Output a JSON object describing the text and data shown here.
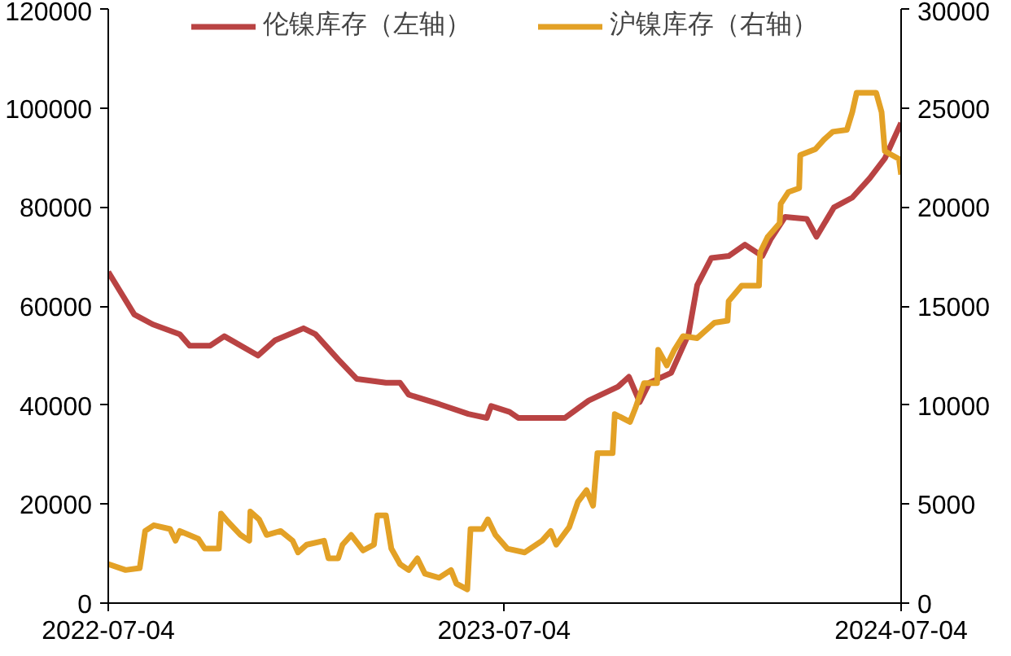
{
  "chart_data": {
    "type": "line",
    "legend": "top",
    "grid": false,
    "marker": "none",
    "line_style": "solid",
    "xlim": [
      "2022-07-04",
      "2024-07-04"
    ],
    "xticks": [
      "2022-07-04",
      "2023-07-04",
      "2024-07-04"
    ],
    "ylim": [
      0,
      120000
    ],
    "yticks": [
      0,
      20000,
      40000,
      60000,
      80000,
      100000,
      120000
    ],
    "y2lim": [
      0,
      30000
    ],
    "y2ticks": [
      0,
      5000,
      10000,
      15000,
      20000,
      25000,
      30000
    ],
    "series": [
      {
        "name": "伦镍库存（左轴）",
        "color": "#b94343",
        "axis": "y",
        "x": [
          "2022-07-04",
          "2022-07-28",
          "2022-08-14",
          "2022-09-08",
          "2022-09-17",
          "2022-10-06",
          "2022-10-19",
          "2022-11-19",
          "2022-12-05",
          "2022-12-31",
          "2023-01-11",
          "2023-02-01",
          "2023-02-18",
          "2023-03-17",
          "2023-03-30",
          "2023-04-07",
          "2023-05-05",
          "2023-06-01",
          "2023-06-18",
          "2023-06-22",
          "2023-07-09",
          "2023-07-17",
          "2023-08-29",
          "2023-09-20",
          "2023-10-17",
          "2023-10-27",
          "2023-11-06",
          "2023-11-15",
          "2023-12-05",
          "2023-12-21",
          "2023-12-29",
          "2024-01-11",
          "2024-01-27",
          "2024-02-11",
          "2024-02-27",
          "2024-03-06",
          "2024-03-19",
          "2024-04-08",
          "2024-04-17",
          "2024-05-03",
          "2024-05-20",
          "2024-06-05",
          "2024-06-19",
          "2024-07-04"
        ],
        "values": [
          66900,
          58300,
          56300,
          54300,
          52000,
          52000,
          53900,
          50000,
          53100,
          55500,
          54300,
          49200,
          45300,
          44500,
          44500,
          42100,
          40200,
          38200,
          37400,
          39800,
          38600,
          37400,
          37400,
          40900,
          43700,
          45700,
          40600,
          44500,
          46500,
          54300,
          64200,
          69700,
          70100,
          72400,
          70100,
          73600,
          78000,
          77600,
          74000,
          79900,
          81900,
          85800,
          89800,
          97000
        ]
      },
      {
        "name": "沪镍库存（右轴）",
        "color": "#e3a126",
        "axis": "y2",
        "x": [
          "2022-07-04",
          "2022-07-20",
          "2022-08-02",
          "2022-08-07",
          "2022-08-15",
          "2022-08-30",
          "2022-09-04",
          "2022-09-08",
          "2022-09-25",
          "2022-10-01",
          "2022-10-14",
          "2022-10-16",
          "2022-10-22",
          "2022-11-03",
          "2022-11-11",
          "2022-11-12",
          "2022-11-20",
          "2022-11-27",
          "2022-12-10",
          "2022-12-21",
          "2022-12-26",
          "2023-01-03",
          "2023-01-19",
          "2023-01-23",
          "2023-02-01",
          "2023-02-05",
          "2023-02-13",
          "2023-02-24",
          "2023-03-06",
          "2023-03-09",
          "2023-03-17",
          "2023-03-22",
          "2023-03-30",
          "2023-04-07",
          "2023-04-15",
          "2023-04-22",
          "2023-05-05",
          "2023-05-16",
          "2023-05-21",
          "2023-05-31",
          "2023-06-03",
          "2023-06-14",
          "2023-06-19",
          "2023-06-26",
          "2023-07-07",
          "2023-07-23",
          "2023-08-08",
          "2023-08-16",
          "2023-08-21",
          "2023-09-02",
          "2023-09-10",
          "2023-09-18",
          "2023-09-24",
          "2023-09-28",
          "2023-10-12",
          "2023-10-14",
          "2023-10-28",
          "2023-11-02",
          "2023-11-10",
          "2023-11-22",
          "2023-11-23",
          "2023-12-01",
          "2023-12-08",
          "2023-12-16",
          "2023-12-29",
          "2024-01-06",
          "2024-01-14",
          "2024-01-26",
          "2024-01-27",
          "2024-02-08",
          "2024-02-24",
          "2024-02-25",
          "2024-03-03",
          "2024-03-14",
          "2024-03-15",
          "2024-03-22",
          "2024-04-01",
          "2024-04-02",
          "2024-04-16",
          "2024-04-24",
          "2024-05-02",
          "2024-05-15",
          "2024-05-20",
          "2024-05-24",
          "2024-06-11",
          "2024-06-16",
          "2024-06-19",
          "2024-07-02",
          "2024-07-04"
        ],
        "values": [
          1970,
          1670,
          1770,
          3640,
          3930,
          3740,
          3150,
          3640,
          3250,
          2750,
          2750,
          4520,
          4130,
          3440,
          3150,
          4620,
          4230,
          3440,
          3640,
          3150,
          2560,
          2950,
          3150,
          2260,
          2260,
          2950,
          3440,
          2660,
          2950,
          4430,
          4430,
          2750,
          1970,
          1670,
          2260,
          1480,
          1280,
          1670,
          980,
          690,
          3740,
          3740,
          4230,
          3440,
          2750,
          2560,
          3150,
          3640,
          2950,
          3840,
          5110,
          5700,
          4920,
          7570,
          7570,
          9540,
          9150,
          9840,
          11110,
          11110,
          12790,
          12000,
          12790,
          13480,
          13380,
          13770,
          14160,
          14260,
          15250,
          16030,
          16030,
          17700,
          18490,
          19180,
          20160,
          20750,
          20950,
          22620,
          22920,
          23410,
          23800,
          23900,
          24790,
          25770,
          25770,
          24790,
          22820,
          22430,
          21640
        ]
      }
    ]
  }
}
